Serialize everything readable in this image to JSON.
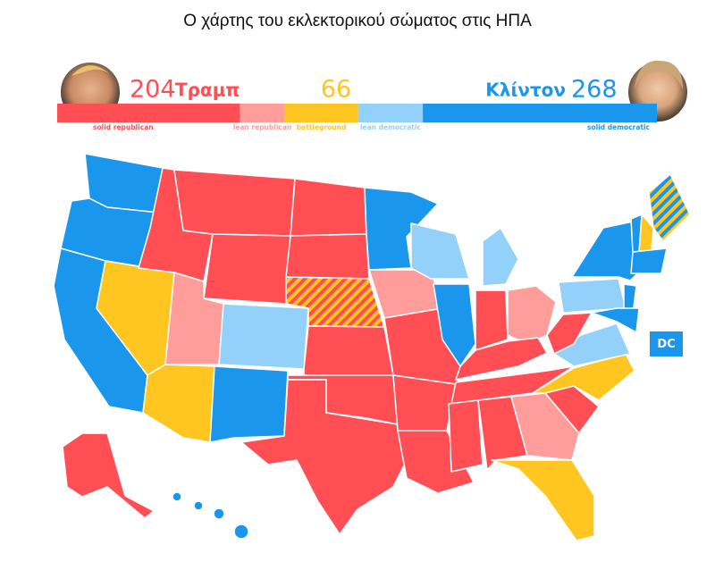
{
  "title": "Ο χάρτης του εκλεκτορικού σώματος στις ΗΠΑ",
  "candidates": [
    {
      "name": "Τραμπ",
      "votes": 204
    },
    {
      "name": "Κλίντον",
      "votes": 268
    }
  ],
  "battleground_votes": 66,
  "bar": {
    "segments": [
      {
        "name": "solid republican",
        "color": "#ff4f55",
        "value": 164
      },
      {
        "name": "lean republican",
        "color": "#ff9d9b",
        "value": 40
      },
      {
        "name": "battleground",
        "color": "#ffc520",
        "value": 66
      },
      {
        "name": "lean democratic",
        "color": "#93d1fb",
        "value": 58
      },
      {
        "name": "solid democratic",
        "color": "#1a96ec",
        "value": 210
      }
    ]
  },
  "dc_label": "DC"
}
